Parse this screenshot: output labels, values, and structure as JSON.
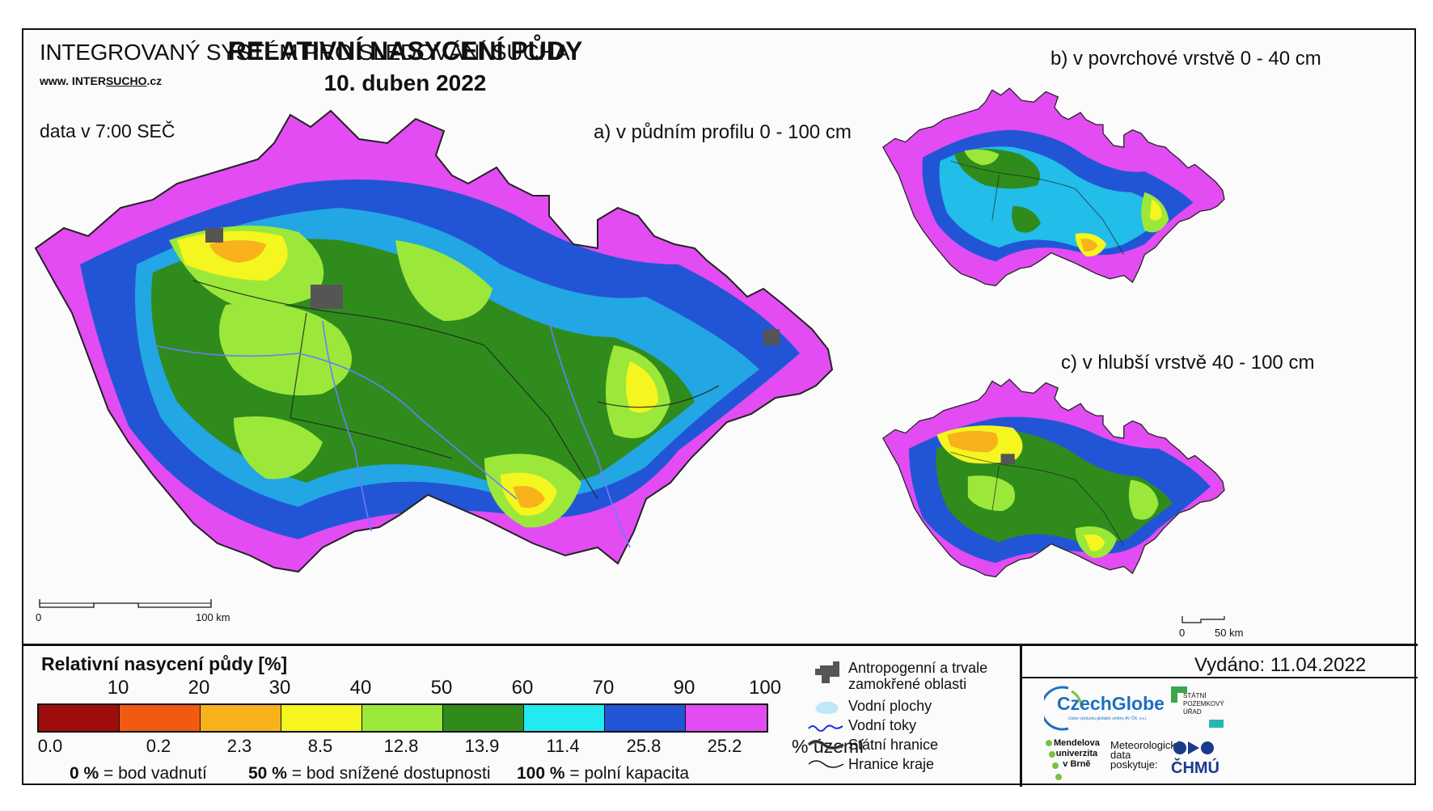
{
  "header": {
    "system_name": "INTEGROVANÝ SYSTÉM PRO SLEDOVÁNÍ SUCHA",
    "url_prefix": "www. INTER",
    "url_brand": "SUCHO",
    "url_suffix": ".cz",
    "data_time": "data v 7:00 SEČ",
    "title": "RELATIVNÍ NASYCENÍ PŮDY",
    "date": "10. duben 2022"
  },
  "maps": {
    "a_label": "a) v půdním profilu 0 - 100 cm",
    "b_label": "b) v povrchové vrstvě 0 - 40 cm",
    "c_label": "c) v hlubší vrstvě 40 - 100 cm",
    "scale_main_start": "0",
    "scale_main_end": "100 km",
    "scale_small_start": "0",
    "scale_small_end": "50 km"
  },
  "legend": {
    "title": "Relativní nasycení půdy [%]",
    "thresholds": [
      "10",
      "20",
      "30",
      "40",
      "50",
      "60",
      "70",
      "90",
      "100"
    ],
    "classes": [
      {
        "color": "#a00d0d",
        "percent": "0.0"
      },
      {
        "color": "#f25a12",
        "percent": "0.2"
      },
      {
        "color": "#f7b21c",
        "percent": "2.3"
      },
      {
        "color": "#f5f51f",
        "percent": "8.5"
      },
      {
        "color": "#9be83a",
        "percent": "12.8"
      },
      {
        "color": "#2f8c1c",
        "percent": "13.9"
      },
      {
        "color": "#22eaf0",
        "percent": "11.4"
      },
      {
        "color": "#2255d6",
        "percent": "25.8"
      },
      {
        "color": "#e24cf2",
        "percent": "25.2"
      }
    ],
    "percent_unit": "% území",
    "def1_value": "0 %",
    "def1_text": "= bod vadnutí",
    "def2_value": "50 %",
    "def2_text": "= bod snížené dostupnosti",
    "def3_value": "100 %",
    "def3_text": "= polní kapacita"
  },
  "map_legend": {
    "items": [
      {
        "icon": "urban-area-icon",
        "label_line1": "Antropogenní a trvale",
        "label_line2": "zamokřené oblasti"
      },
      {
        "icon": "water-body-icon",
        "label_line1": "Vodní plochy"
      },
      {
        "icon": "river-icon",
        "label_line1": "Vodní toky"
      },
      {
        "icon": "state-border-icon",
        "label_line1": "Státní hranice"
      },
      {
        "icon": "region-border-icon",
        "label_line1": "Hranice kraje"
      }
    ]
  },
  "footer": {
    "issued": "Vydáno: 11.04.2022",
    "czechglobe": "CzechGlobe",
    "czechglobe_sub": "Ústav výzkumu globální změny AV ČR, v.v.i.",
    "spu_line1": "STÁTNÍ",
    "spu_line2": "POZEMKOVÝ",
    "spu_line3": "ÚŘAD",
    "mendel_line1": "Mendelova",
    "mendel_line2": "univerzita",
    "mendel_line3": "v Brně",
    "meteo_line1": "Meteorologická",
    "meteo_line2": "data",
    "meteo_line3": "poskytuje:",
    "chmu": "ČHMÚ"
  }
}
